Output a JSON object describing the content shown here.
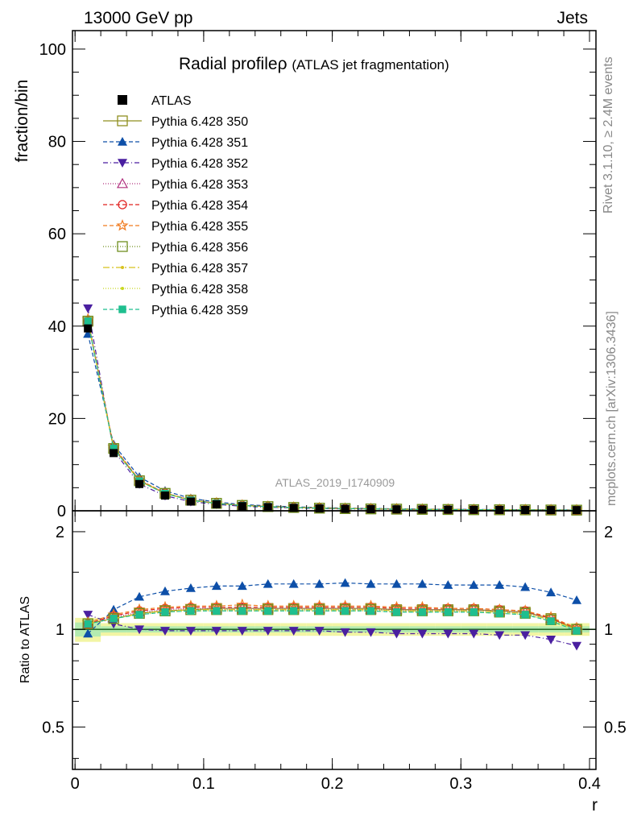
{
  "header": {
    "left": "13000 GeV pp",
    "right": "Jets",
    "side_top": "Rivet 3.1.10, ≥ 2.4M events",
    "side_bottom": "mcplots.cern.ch [arXiv:1306.3436]",
    "watermark": "ATLAS_2019_I1740909"
  },
  "chart_data": {
    "type": "line",
    "title": "Radial profile",
    "title_symbol": "ρ",
    "title_suffix": "(ATLAS jet fragmentation)",
    "xlabel": "r",
    "ylabel": "fraction/bin",
    "ratio_ylabel": "Ratio to ATLAS",
    "xlim": [
      -0.002,
      0.405
    ],
    "ylim": [
      0,
      104
    ],
    "ratio_ylim": [
      0.37,
      2.32
    ],
    "x_ticks": [
      "0",
      "0.1",
      "0.2",
      "0.3",
      "0.4"
    ],
    "y_ticks": [
      "0",
      "20",
      "40",
      "60",
      "80",
      "100"
    ],
    "ratio_y_ticks": [
      "0.5",
      "1",
      "2"
    ],
    "legend_position": "top-left",
    "x": [
      0.01,
      0.03,
      0.05,
      0.07,
      0.09,
      0.11,
      0.13,
      0.15,
      0.17,
      0.19,
      0.21,
      0.23,
      0.25,
      0.27,
      0.29,
      0.31,
      0.33,
      0.35,
      0.37,
      0.39
    ],
    "data": {
      "name": "ATLAS",
      "values": [
        39.5,
        12.5,
        5.8,
        3.3,
        2.0,
        1.4,
        1.0,
        0.78,
        0.62,
        0.5,
        0.42,
        0.36,
        0.31,
        0.27,
        0.24,
        0.21,
        0.19,
        0.17,
        0.16,
        0.15
      ]
    },
    "series": [
      {
        "name": "Pythia 6.428 350",
        "color": "#8f8f1f",
        "dash": "",
        "marker": "square-open",
        "ratio": [
          1.04,
          1.08,
          1.12,
          1.14,
          1.15,
          1.16,
          1.16,
          1.16,
          1.16,
          1.16,
          1.16,
          1.16,
          1.15,
          1.15,
          1.15,
          1.15,
          1.14,
          1.13,
          1.08,
          1.0
        ]
      },
      {
        "name": "Pythia 6.428 351",
        "color": "#0d4fa8",
        "dash": "5,3",
        "marker": "triangle-up",
        "ratio": [
          0.97,
          1.15,
          1.26,
          1.31,
          1.34,
          1.36,
          1.36,
          1.38,
          1.38,
          1.38,
          1.39,
          1.38,
          1.38,
          1.38,
          1.37,
          1.37,
          1.37,
          1.35,
          1.3,
          1.23
        ]
      },
      {
        "name": "Pythia 6.428 352",
        "color": "#4a1fa0",
        "dash": "6,3,1,3",
        "marker": "triangle-down",
        "ratio": [
          1.11,
          1.04,
          1.0,
          0.99,
          0.99,
          0.99,
          0.99,
          0.99,
          0.99,
          0.99,
          0.98,
          0.98,
          0.97,
          0.97,
          0.97,
          0.97,
          0.96,
          0.96,
          0.93,
          0.89
        ]
      },
      {
        "name": "Pythia 6.428 353",
        "color": "#b0307e",
        "dash": "1,2",
        "marker": "triangle-open",
        "ratio": [
          1.04,
          1.09,
          1.13,
          1.15,
          1.16,
          1.16,
          1.16,
          1.16,
          1.16,
          1.16,
          1.16,
          1.15,
          1.15,
          1.15,
          1.15,
          1.15,
          1.14,
          1.13,
          1.08,
          1.0
        ]
      },
      {
        "name": "Pythia 6.428 354",
        "color": "#e0201f",
        "dash": "5,3",
        "marker": "circle-open",
        "ratio": [
          1.04,
          1.1,
          1.14,
          1.16,
          1.17,
          1.17,
          1.17,
          1.17,
          1.17,
          1.17,
          1.17,
          1.17,
          1.16,
          1.16,
          1.16,
          1.16,
          1.15,
          1.14,
          1.08,
          1.01
        ]
      },
      {
        "name": "Pythia 6.428 355",
        "color": "#f07a1f",
        "dash": "5,3",
        "marker": "star-open",
        "ratio": [
          1.05,
          1.11,
          1.15,
          1.17,
          1.18,
          1.18,
          1.19,
          1.18,
          1.18,
          1.18,
          1.18,
          1.18,
          1.17,
          1.17,
          1.16,
          1.16,
          1.15,
          1.14,
          1.09,
          1.01
        ]
      },
      {
        "name": "Pythia 6.428 356",
        "color": "#6f8f1f",
        "dash": "1,2",
        "marker": "square-open",
        "ratio": [
          1.04,
          1.08,
          1.12,
          1.14,
          1.15,
          1.15,
          1.15,
          1.15,
          1.15,
          1.15,
          1.15,
          1.15,
          1.14,
          1.14,
          1.14,
          1.14,
          1.13,
          1.12,
          1.07,
          1.0
        ]
      },
      {
        "name": "Pythia 6.428 357",
        "color": "#d8c21f",
        "dash": "8,3,2,3",
        "marker": "dot",
        "ratio": [
          1.04,
          1.08,
          1.12,
          1.14,
          1.15,
          1.15,
          1.15,
          1.15,
          1.15,
          1.15,
          1.15,
          1.15,
          1.14,
          1.14,
          1.14,
          1.14,
          1.13,
          1.12,
          1.07,
          1.0
        ]
      },
      {
        "name": "Pythia 6.428 358",
        "color": "#c8d81f",
        "dash": "1,2",
        "marker": "dot",
        "ratio": [
          1.04,
          1.08,
          1.11,
          1.13,
          1.14,
          1.14,
          1.14,
          1.14,
          1.14,
          1.14,
          1.14,
          1.14,
          1.13,
          1.13,
          1.13,
          1.13,
          1.12,
          1.11,
          1.06,
          0.99
        ]
      },
      {
        "name": "Pythia 6.428 359",
        "color": "#1fbf8f",
        "dash": "5,3",
        "marker": "square-filled",
        "ratio": [
          1.04,
          1.08,
          1.11,
          1.13,
          1.14,
          1.14,
          1.14,
          1.14,
          1.14,
          1.14,
          1.14,
          1.14,
          1.13,
          1.13,
          1.13,
          1.13,
          1.12,
          1.11,
          1.06,
          0.99
        ]
      }
    ]
  }
}
